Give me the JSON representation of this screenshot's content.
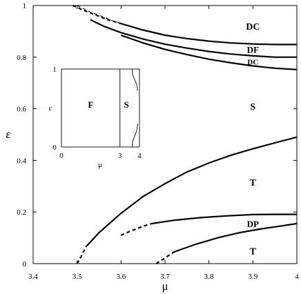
{
  "chart_data": {
    "type": "line",
    "xlabel": "μ",
    "ylabel": "ε",
    "xlim": [
      3.4,
      4.0
    ],
    "ylim": [
      0,
      1
    ],
    "x_ticks": [
      "3.4",
      "3.5",
      "3.6",
      "3.7",
      "3.8",
      "3.9",
      "4"
    ],
    "y_ticks": [
      "0",
      "0.2",
      "0.4",
      "0.6",
      "0.8",
      "1"
    ],
    "grid": false,
    "series": [
      {
        "style": "thick",
        "dashed_points": [
          [
            3.49,
            1.0
          ],
          [
            3.51,
            0.985
          ],
          [
            3.54,
            0.965
          ],
          [
            3.57,
            0.945
          ],
          [
            3.6,
            0.93
          ]
        ],
        "solid_points": [
          [
            3.6,
            0.93
          ],
          [
            3.65,
            0.905
          ],
          [
            3.7,
            0.885
          ],
          [
            3.75,
            0.872
          ],
          [
            3.8,
            0.862
          ],
          [
            3.85,
            0.855
          ],
          [
            3.9,
            0.851
          ],
          [
            3.95,
            0.849
          ],
          [
            4.0,
            0.849
          ]
        ]
      },
      {
        "style": "thin",
        "dashed_points": [
          [
            3.5,
            1.0
          ],
          [
            3.53,
            0.975
          ],
          [
            3.56,
            0.955
          ],
          [
            3.59,
            0.935
          ],
          [
            3.61,
            0.925
          ]
        ],
        "solid_points": []
      },
      {
        "style": "thick",
        "dashed_points": [],
        "solid_points": [
          [
            3.53,
            0.945
          ],
          [
            3.56,
            0.92
          ],
          [
            3.6,
            0.895
          ],
          [
            3.65,
            0.87
          ],
          [
            3.7,
            0.85
          ],
          [
            3.75,
            0.835
          ],
          [
            3.8,
            0.822
          ],
          [
            3.85,
            0.812
          ],
          [
            3.9,
            0.805
          ],
          [
            3.95,
            0.8
          ],
          [
            4.0,
            0.8
          ]
        ]
      },
      {
        "style": "thick",
        "dashed_points": [],
        "solid_points": [
          [
            3.6,
            0.885
          ],
          [
            3.65,
            0.855
          ],
          [
            3.7,
            0.83
          ],
          [
            3.75,
            0.81
          ],
          [
            3.8,
            0.792
          ],
          [
            3.85,
            0.778
          ],
          [
            3.9,
            0.766
          ],
          [
            3.95,
            0.757
          ],
          [
            4.0,
            0.752
          ]
        ]
      },
      {
        "style": "thick",
        "dashed_points": [
          [
            3.5,
            0.0
          ],
          [
            3.51,
            0.03
          ],
          [
            3.52,
            0.065
          ]
        ],
        "solid_points": [
          [
            3.52,
            0.065
          ],
          [
            3.55,
            0.12
          ],
          [
            3.6,
            0.195
          ],
          [
            3.65,
            0.26
          ],
          [
            3.7,
            0.31
          ],
          [
            3.75,
            0.355
          ],
          [
            3.8,
            0.39
          ],
          [
            3.85,
            0.42
          ],
          [
            3.9,
            0.445
          ],
          [
            3.95,
            0.468
          ],
          [
            4.0,
            0.49
          ]
        ]
      },
      {
        "style": "thick",
        "dashed_points": [
          [
            3.6,
            0.11
          ],
          [
            3.62,
            0.125
          ],
          [
            3.65,
            0.145
          ],
          [
            3.67,
            0.155
          ]
        ],
        "solid_points": [
          [
            3.67,
            0.155
          ],
          [
            3.72,
            0.168
          ],
          [
            3.78,
            0.178
          ],
          [
            3.84,
            0.185
          ],
          [
            3.9,
            0.19
          ],
          [
            3.95,
            0.191
          ],
          [
            4.0,
            0.191
          ]
        ]
      },
      {
        "style": "thick",
        "dashed_points": [
          [
            3.68,
            0.0
          ],
          [
            3.7,
            0.022
          ],
          [
            3.72,
            0.045
          ]
        ],
        "solid_points": [
          [
            3.72,
            0.045
          ],
          [
            3.77,
            0.075
          ],
          [
            3.82,
            0.1
          ],
          [
            3.87,
            0.12
          ],
          [
            3.92,
            0.135
          ],
          [
            3.96,
            0.145
          ],
          [
            4.0,
            0.155
          ]
        ]
      }
    ],
    "region_labels": [
      {
        "text": "DC",
        "x": 3.9,
        "y": 0.92,
        "size": "large"
      },
      {
        "text": "DF",
        "x": 3.9,
        "y": 0.83,
        "size": "medium"
      },
      {
        "text": "DC",
        "x": 3.9,
        "y": 0.785,
        "size": "small"
      },
      {
        "text": "S",
        "x": 3.9,
        "y": 0.61,
        "size": "large"
      },
      {
        "text": "T",
        "x": 3.9,
        "y": 0.315,
        "size": "large"
      },
      {
        "text": "DP",
        "x": 3.9,
        "y": 0.155,
        "size": "medium"
      },
      {
        "text": "T",
        "x": 3.9,
        "y": 0.05,
        "size": "large"
      }
    ],
    "inset": {
      "type": "line",
      "xlabel": "μ",
      "ylabel": "ε",
      "xlim": [
        0,
        4
      ],
      "ylim": [
        0,
        1
      ],
      "x_ticks": [
        "0",
        "3",
        "4"
      ],
      "y_ticks": [
        "0",
        "1"
      ],
      "region_labels": [
        {
          "text": "F",
          "x": 1.5,
          "y": 0.55
        },
        {
          "text": "S",
          "x": 3.33,
          "y": 0.55
        }
      ]
    }
  }
}
